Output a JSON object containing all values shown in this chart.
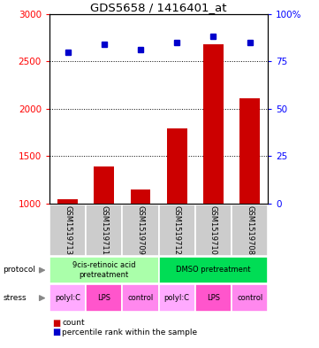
{
  "title": "GDS5658 / 1416401_at",
  "samples": [
    "GSM1519713",
    "GSM1519711",
    "GSM1519709",
    "GSM1519712",
    "GSM1519710",
    "GSM1519708"
  ],
  "counts": [
    1050,
    1390,
    1150,
    1790,
    2680,
    2110
  ],
  "percentiles": [
    80,
    84,
    81,
    85,
    88,
    85
  ],
  "ylim_left": [
    1000,
    3000
  ],
  "ylim_right": [
    0,
    100
  ],
  "yticks_left": [
    1000,
    1500,
    2000,
    2500,
    3000
  ],
  "yticks_right": [
    0,
    25,
    50,
    75,
    100
  ],
  "bar_color": "#cc0000",
  "dot_color": "#0000cc",
  "sample_bg": "#cccccc",
  "protocol1_color": "#aaffaa",
  "protocol2_color": "#00dd55",
  "stress_polyIC_color": "#ffaaff",
  "stress_LPS_color": "#ff55cc",
  "stress_control_color": "#ff88ee",
  "protocol_labels": [
    "9cis-retinoic acid\npretreatment",
    "DMSO pretreatment"
  ],
  "stress_labels": [
    "polyI:C",
    "LPS",
    "control",
    "polyI:C",
    "LPS",
    "control"
  ],
  "arrow_color": "#888888"
}
